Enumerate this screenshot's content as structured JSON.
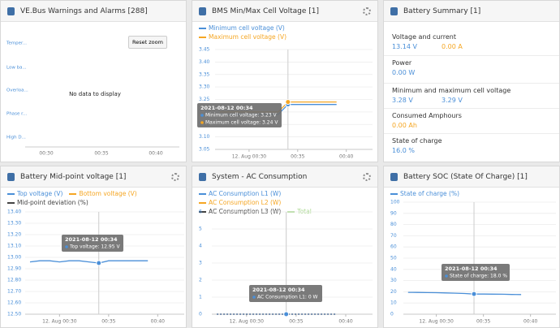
{
  "panels": [
    {
      "title": "VE.Bus Warnings and Alarms [288]",
      "y_labels": [
        "Temper...",
        "Low ba...",
        "Overloa...",
        "Phase r...",
        "High D..."
      ],
      "button": "Reset zoom",
      "message": "No data to display",
      "xticks": [
        "00:30",
        "00:35",
        "00:40"
      ]
    },
    {
      "title": "BMS Min/Max Cell Voltage [1]",
      "chart": {
        "type": "line",
        "x": [
          27,
          28,
          29,
          30,
          31,
          32,
          33,
          34,
          35,
          36,
          37,
          38,
          39
        ],
        "series": [
          {
            "name": "Minimum cell voltage (V)",
            "color": "#4a8fd8",
            "values": [
              3.19,
              3.19,
              3.19,
              3.19,
              3.19,
              3.19,
              3.19,
              3.23,
              3.23,
              3.23,
              3.23,
              3.23,
              3.23
            ]
          },
          {
            "name": "Maximum cell voltage (V)",
            "color": "#f5a623",
            "values": [
              3.2,
              3.2,
              3.2,
              3.2,
              3.2,
              3.2,
              3.2,
              3.24,
              3.24,
              3.24,
              3.24,
              3.24,
              3.24
            ]
          }
        ],
        "xlim": [
          26.5,
          42.7
        ],
        "xticks": [
          {
            "value": 30,
            "label": "12. Aug 00:30"
          },
          {
            "value": 35,
            "label": "00:35"
          },
          {
            "value": 40,
            "label": "00:40"
          }
        ],
        "ylim": [
          3.05,
          3.45
        ],
        "yticks": [
          3.05,
          {
            "value": 3.1,
            "label": "3.10"
          },
          3.15,
          {
            "value": 3.2,
            "label": "3.20"
          },
          3.25,
          {
            "value": 3.3,
            "label": "3.30"
          },
          3.35,
          {
            "value": 3.4,
            "label": "3.40"
          },
          3.45
        ],
        "grid": true,
        "tooltip": {
          "title": "2021-08-12 00:34",
          "lines": [
            "Minimum cell voltage: 3.23 V",
            "Maximum cell voltage: 3.24 V"
          ]
        }
      }
    },
    {
      "title": "Battery Summary [1]",
      "items": [
        {
          "label": "Voltage and current",
          "values": [
            "13.14 V",
            "0.00 A"
          ]
        },
        {
          "label": "Power",
          "values": [
            "0.00 W"
          ]
        },
        {
          "label": "Minimum and maximum cell voltage",
          "values": [
            "3.28 V",
            "3.29 V"
          ]
        },
        {
          "label": "Consumed Amphours",
          "values": [
            "0.00 Ah"
          ]
        },
        {
          "label": "State of charge",
          "values": [
            "16.0 %"
          ]
        }
      ]
    },
    {
      "title": "Battery Mid-point voltage [1]",
      "chart": {
        "type": "line",
        "x": [
          27,
          28,
          29,
          30,
          31,
          32,
          33,
          34,
          35,
          36,
          37,
          38,
          39
        ],
        "series": [
          {
            "name": "Top voltage (V)",
            "color": "#4a8fd8",
            "values": [
              12.96,
              12.97,
              12.97,
              12.96,
              12.97,
              12.97,
              12.96,
              12.95,
              12.97,
              12.97,
              12.97,
              12.97,
              12.97
            ]
          },
          {
            "name": "Bottom voltage (V)",
            "color": "#f5a623"
          },
          {
            "name": "Mid-point deviation (%)",
            "color": "#444444"
          }
        ],
        "xlim": [
          26.5,
          42.7
        ],
        "xticks": [
          {
            "value": 30,
            "label": "12. Aug 00:30"
          },
          {
            "value": 35,
            "label": "00:35"
          },
          {
            "value": 40,
            "label": "00:40"
          }
        ],
        "ylim": [
          12.5,
          13.4
        ],
        "yticks": [
          {
            "value": 12.5,
            "label": "12.50"
          },
          {
            "value": 12.6,
            "label": "12.60"
          },
          {
            "value": 12.7,
            "label": "12.70"
          },
          {
            "value": 12.8,
            "label": "12.80"
          },
          {
            "value": 12.9,
            "label": "12.90"
          },
          {
            "value": 13,
            "label": "13.00"
          },
          {
            "value": 13.1,
            "label": "13.10"
          },
          {
            "value": 13.2,
            "label": "13.20"
          },
          {
            "value": 13.3,
            "label": "13.30"
          },
          {
            "value": 13.4,
            "label": "13.40"
          }
        ],
        "grid": true,
        "tooltip": {
          "title": "2021-08-12 00:34",
          "lines": [
            "Top voltage: 12.95 V"
          ]
        }
      }
    },
    {
      "title": "System - AC Consumption",
      "chart": {
        "type": "line",
        "x": [
          27,
          28,
          29,
          30,
          31,
          32,
          33,
          34,
          35,
          36,
          37,
          38,
          39
        ],
        "series": [
          {
            "name": "AC Consumption L1 (W)",
            "color": "#4a8fd8",
            "values": [
              0,
              0,
              0,
              0,
              0,
              0,
              0,
              0,
              0,
              0,
              0,
              0,
              0
            ]
          },
          {
            "name": "AC Consumption L2 (W)",
            "color": "#f5a623"
          },
          {
            "name": "AC Consumption L3 (W)",
            "color": "#444444"
          },
          {
            "name": "Total",
            "color": "#a9d88f"
          }
        ],
        "xlim": [
          26.5,
          42.7
        ],
        "xticks": [
          {
            "value": 30,
            "label": "12. Aug 00:30"
          },
          {
            "value": 35,
            "label": "00:35"
          },
          {
            "value": 40,
            "label": "00:40"
          }
        ],
        "ylim": [
          0,
          6
        ],
        "yticks": [
          0,
          1,
          2,
          3,
          4,
          5,
          6
        ],
        "grid": true,
        "tooltip": {
          "title": "2021-08-12 00:34",
          "lines": [
            "AC Consumption L1: 0 W"
          ]
        }
      }
    },
    {
      "title": "Battery SOC (State Of Charge) [1]",
      "chart": {
        "type": "line",
        "x": [
          27,
          28,
          29,
          30,
          31,
          32,
          33,
          34,
          35,
          36,
          37,
          38,
          39
        ],
        "series": [
          {
            "name": "State of charge (%)",
            "color": "#4a8fd8",
            "values": [
              19.5,
              19.4,
              19.3,
              19.2,
              19.0,
              18.8,
              18.5,
              18.0,
              18.0,
              17.9,
              17.8,
              17.6,
              17.5
            ]
          }
        ],
        "xlim": [
          26.5,
          42.7
        ],
        "xticks": [
          {
            "value": 30,
            "label": "12. Aug 00:30"
          },
          {
            "value": 35,
            "label": "00:35"
          },
          {
            "value": 40,
            "label": "00:40"
          }
        ],
        "ylim": [
          0,
          100
        ],
        "yticks": [
          0,
          10,
          20,
          30,
          40,
          50,
          60,
          70,
          80,
          90,
          100
        ],
        "grid": true,
        "tooltip": {
          "title": "2021-08-12 00:34",
          "lines": [
            "State of charge: 18.0 %"
          ]
        }
      }
    }
  ]
}
